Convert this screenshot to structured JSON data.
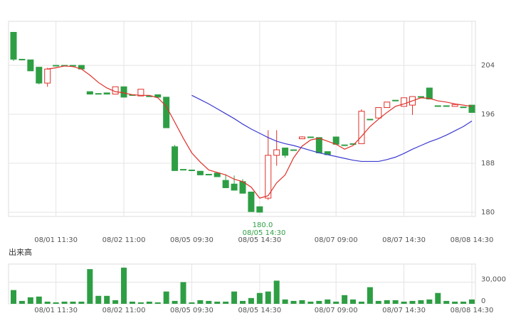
{
  "chart_data": {
    "type": "candlestick",
    "categories": [
      null,
      null,
      null,
      null,
      null,
      "08/01 11:30",
      null,
      null,
      null,
      null,
      null,
      null,
      null,
      "08/02 11:00",
      null,
      null,
      null,
      null,
      null,
      null,
      null,
      "08/05 09:30",
      null,
      null,
      null,
      null,
      null,
      null,
      null,
      "08/05 14:30",
      null,
      null,
      null,
      null,
      null,
      null,
      null,
      null,
      "08/07 09:00",
      null,
      null,
      null,
      null,
      null,
      null,
      null,
      "08/07 14:30",
      null,
      null,
      null,
      null,
      null,
      null,
      null,
      "08/08 14:30"
    ],
    "open": [
      209.4,
      205.0,
      204.9,
      203.7,
      201.1,
      204.0,
      204.0,
      204.0,
      204.0,
      199.7,
      199.4,
      199.5,
      199.3,
      200.5,
      199.2,
      199.0,
      199.0,
      199.2,
      198.8,
      190.7,
      187.0,
      186.9,
      186.7,
      186.2,
      186.4,
      185.2,
      184.6,
      185.0,
      183.3,
      180.9,
      182.3,
      189.3,
      190.5,
      190.2,
      192.0,
      192.3,
      192.2,
      189.9,
      192.3,
      191.0,
      191.2,
      191.2,
      195.2,
      195.4,
      197.1,
      198.3,
      197.3,
      197.5,
      198.9,
      200.3,
      197.4,
      197.4,
      197.3,
      197.2,
      197.5
    ],
    "high": [
      209.4,
      205.0,
      204.9,
      203.7,
      203.6,
      204.0,
      204.0,
      204.0,
      204.0,
      199.7,
      199.4,
      199.5,
      200.5,
      200.5,
      199.2,
      200.1,
      199.0,
      199.2,
      198.8,
      191.0,
      187.0,
      186.9,
      186.7,
      186.2,
      186.4,
      186.2,
      186.0,
      185.4,
      183.3,
      180.9,
      193.4,
      193.4,
      190.5,
      190.2,
      192.4,
      192.3,
      192.2,
      189.9,
      192.3,
      191.0,
      191.2,
      196.8,
      195.2,
      197.1,
      198.0,
      198.3,
      198.7,
      198.9,
      198.9,
      200.3,
      197.4,
      197.4,
      197.6,
      197.2,
      197.5
    ],
    "low": [
      204.7,
      204.9,
      203.1,
      200.9,
      200.5,
      204.0,
      204.0,
      204.0,
      203.4,
      199.3,
      199.4,
      199.3,
      199.3,
      198.8,
      199.2,
      199.0,
      199.0,
      198.8,
      193.8,
      186.8,
      187.0,
      186.9,
      186.1,
      186.2,
      185.8,
      184.0,
      183.6,
      183.1,
      180.1,
      180.0,
      182.0,
      187.6,
      188.9,
      190.2,
      192.0,
      192.3,
      189.7,
      189.4,
      191.1,
      191.0,
      191.2,
      191.2,
      195.2,
      195.4,
      197.1,
      198.3,
      197.3,
      195.9,
      198.9,
      198.5,
      197.4,
      197.4,
      197.3,
      197.2,
      196.3
    ],
    "close": [
      205.0,
      204.9,
      203.1,
      201.1,
      203.4,
      204.0,
      204.0,
      204.0,
      203.4,
      199.3,
      199.4,
      199.3,
      200.5,
      198.8,
      199.2,
      200.1,
      199.0,
      198.8,
      193.8,
      186.8,
      187.0,
      186.9,
      186.1,
      186.2,
      185.8,
      184.0,
      183.6,
      183.1,
      180.1,
      180.0,
      189.3,
      190.2,
      189.3,
      190.2,
      192.3,
      192.3,
      189.7,
      189.4,
      191.1,
      191.0,
      191.2,
      196.5,
      195.2,
      197.1,
      198.0,
      198.3,
      198.7,
      198.9,
      198.9,
      198.5,
      197.4,
      197.4,
      197.6,
      197.2,
      196.3
    ],
    "up_color": "#e0302a",
    "down_color": "#2e9e44",
    "lines": [
      {
        "color": "#e0302a",
        "values": [
          null,
          null,
          null,
          null,
          203.4,
          203.6,
          203.9,
          203.8,
          203.4,
          202.4,
          201.2,
          200.3,
          199.7,
          199.5,
          199.2,
          199.1,
          199.1,
          198.7,
          197.3,
          194.7,
          192.1,
          189.7,
          188.2,
          186.9,
          186.5,
          186.1,
          185.4,
          185.0,
          184.1,
          182.3,
          182.7,
          184.8,
          186.1,
          188.9,
          190.8,
          191.8,
          192.1,
          191.6,
          191.1,
          190.3,
          190.9,
          192.4,
          194.0,
          195.2,
          196.3,
          197.3,
          197.7,
          198.2,
          198.7,
          198.6,
          198.2,
          198.0,
          197.7,
          197.5,
          197.3
        ]
      },
      {
        "color": "#3a3ad0",
        "values": [
          null,
          null,
          null,
          null,
          null,
          null,
          null,
          null,
          null,
          null,
          null,
          null,
          null,
          null,
          null,
          null,
          null,
          null,
          null,
          null,
          null,
          199.1,
          198.4,
          197.7,
          196.9,
          196.1,
          195.3,
          194.4,
          193.6,
          192.9,
          192.2,
          191.6,
          191.2,
          190.9,
          190.5,
          190.1,
          189.7,
          189.4,
          189.1,
          188.8,
          188.5,
          188.3,
          188.3,
          188.3,
          188.6,
          189.0,
          189.6,
          190.3,
          190.9,
          191.5,
          192.0,
          192.6,
          193.3,
          194.0,
          194.9
        ]
      }
    ],
    "ylim": [
      179.3,
      211.2
    ],
    "yticks": [
      180,
      188,
      196,
      204
    ],
    "grid": true,
    "annotations": [
      "180.0",
      "08/05 14:30"
    ],
    "volume": {
      "label": "出来高",
      "color": "#2e9e44",
      "values": [
        19000,
        4000,
        9000,
        10000,
        3000,
        2000,
        3000,
        3000,
        3000,
        48000,
        11000,
        11000,
        5000,
        50000,
        3000,
        2000,
        3000,
        2000,
        17000,
        4000,
        30000,
        2000,
        5000,
        4000,
        3000,
        3000,
        17000,
        4000,
        8000,
        15000,
        17000,
        32000,
        6000,
        4000,
        5000,
        3000,
        4000,
        6000,
        3000,
        12000,
        6000,
        3000,
        23000,
        4000,
        5000,
        5000,
        3000,
        4000,
        5000,
        6000,
        15000,
        4000,
        3000,
        3000,
        6000
      ],
      "ylim": [
        0,
        55000
      ],
      "yticks": [
        0,
        {
          "value": 30000,
          "label": "30,000"
        }
      ]
    }
  }
}
